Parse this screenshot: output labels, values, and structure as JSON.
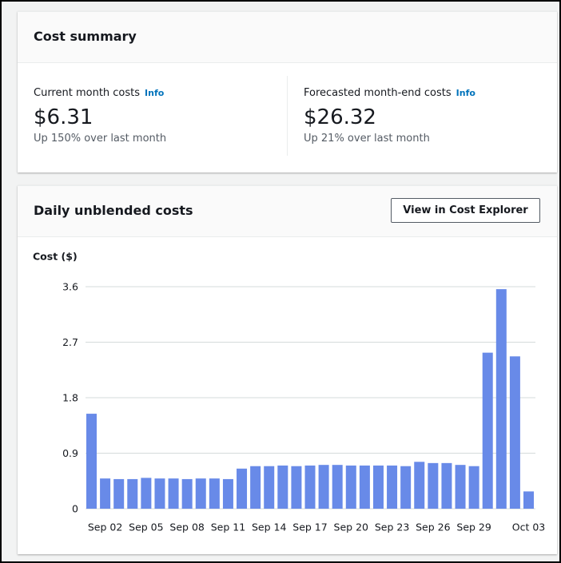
{
  "cost_summary": {
    "title": "Cost summary",
    "items": [
      {
        "label": "Current month costs",
        "info": "Info",
        "amount": "$6.31",
        "change": "Up 150% over last month"
      },
      {
        "label": "Forecasted month-end costs",
        "info": "Info",
        "amount": "$26.32",
        "change": "Up 21% over last month"
      }
    ]
  },
  "daily_card": {
    "title": "Daily unblended costs",
    "button": "View in Cost Explorer"
  },
  "chart_data": {
    "type": "bar",
    "ylabel": "Cost ($)",
    "categories": [
      null,
      "Sep 02",
      null,
      null,
      "Sep 05",
      null,
      null,
      "Sep 08",
      null,
      null,
      "Sep 11",
      null,
      null,
      "Sep 14",
      null,
      null,
      "Sep 17",
      null,
      null,
      "Sep 20",
      null,
      null,
      "Sep 23",
      null,
      null,
      "Sep 26",
      null,
      null,
      "Sep 29",
      null,
      null,
      null,
      "Oct 03"
    ],
    "values": [
      1.54,
      0.49,
      0.48,
      0.48,
      0.5,
      0.49,
      0.49,
      0.48,
      0.49,
      0.49,
      0.48,
      0.65,
      0.69,
      0.69,
      0.7,
      0.69,
      0.7,
      0.71,
      0.71,
      0.7,
      0.7,
      0.7,
      0.7,
      0.69,
      0.76,
      0.74,
      0.74,
      0.71,
      0.69,
      2.53,
      3.56,
      2.47,
      0.28
    ],
    "color": "#688ae8",
    "ylim": [
      0,
      3.6
    ],
    "yticks": [
      0,
      0.9,
      1.8,
      2.7,
      3.6
    ],
    "grid": true
  }
}
